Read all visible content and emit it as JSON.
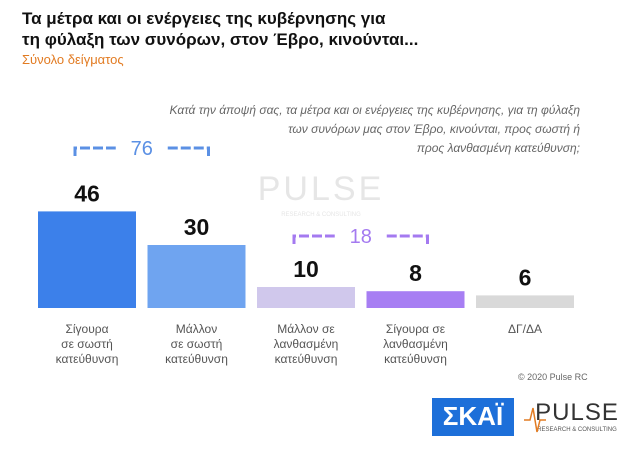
{
  "chart_data": {
    "type": "bar",
    "title": "Τα μέτρα και οι ενέργειες της κυβέρνησης για\nτη φύλαξη των συνόρων, στον Έβρο, κινούνται...",
    "subtitle": "Σύνολο δείγματος",
    "question": "Κατά την άποψή σας, τα μέτρα και οι ενέργειες της κυβέρνησης, για τη φύλαξη\nτων συνόρων μας στον Έβρο, κινούνται, προς σωστή ή\nπρος λανθασμένη κατεύθυνση;",
    "categories": [
      "Σίγουρα\nσε σωστή\nκατεύθυνση",
      "Μάλλον\nσε σωστή\nκατεύθυνση",
      "Μάλλον σε\nλανθασμένη\nκατεύθυνση",
      "Σίγουρα σε\nλανθασμένη\nκατεύθυνση",
      "ΔΓ/ΔΑ"
    ],
    "values": [
      46,
      30,
      10,
      8,
      6
    ],
    "colors": [
      "#3c80ea",
      "#6fa4f0",
      "#d0c8ec",
      "#a77ef3",
      "#d9d9d9"
    ],
    "brackets": [
      {
        "value": 76,
        "color": "#5b90e4"
      },
      {
        "value": 18,
        "color": "#a47af0"
      }
    ],
    "copyright": "© 2020 Pulse RC",
    "logos": [
      "ΣΚΑΪ",
      "PULSE",
      "RESEARCH & CONSULTING"
    ]
  }
}
